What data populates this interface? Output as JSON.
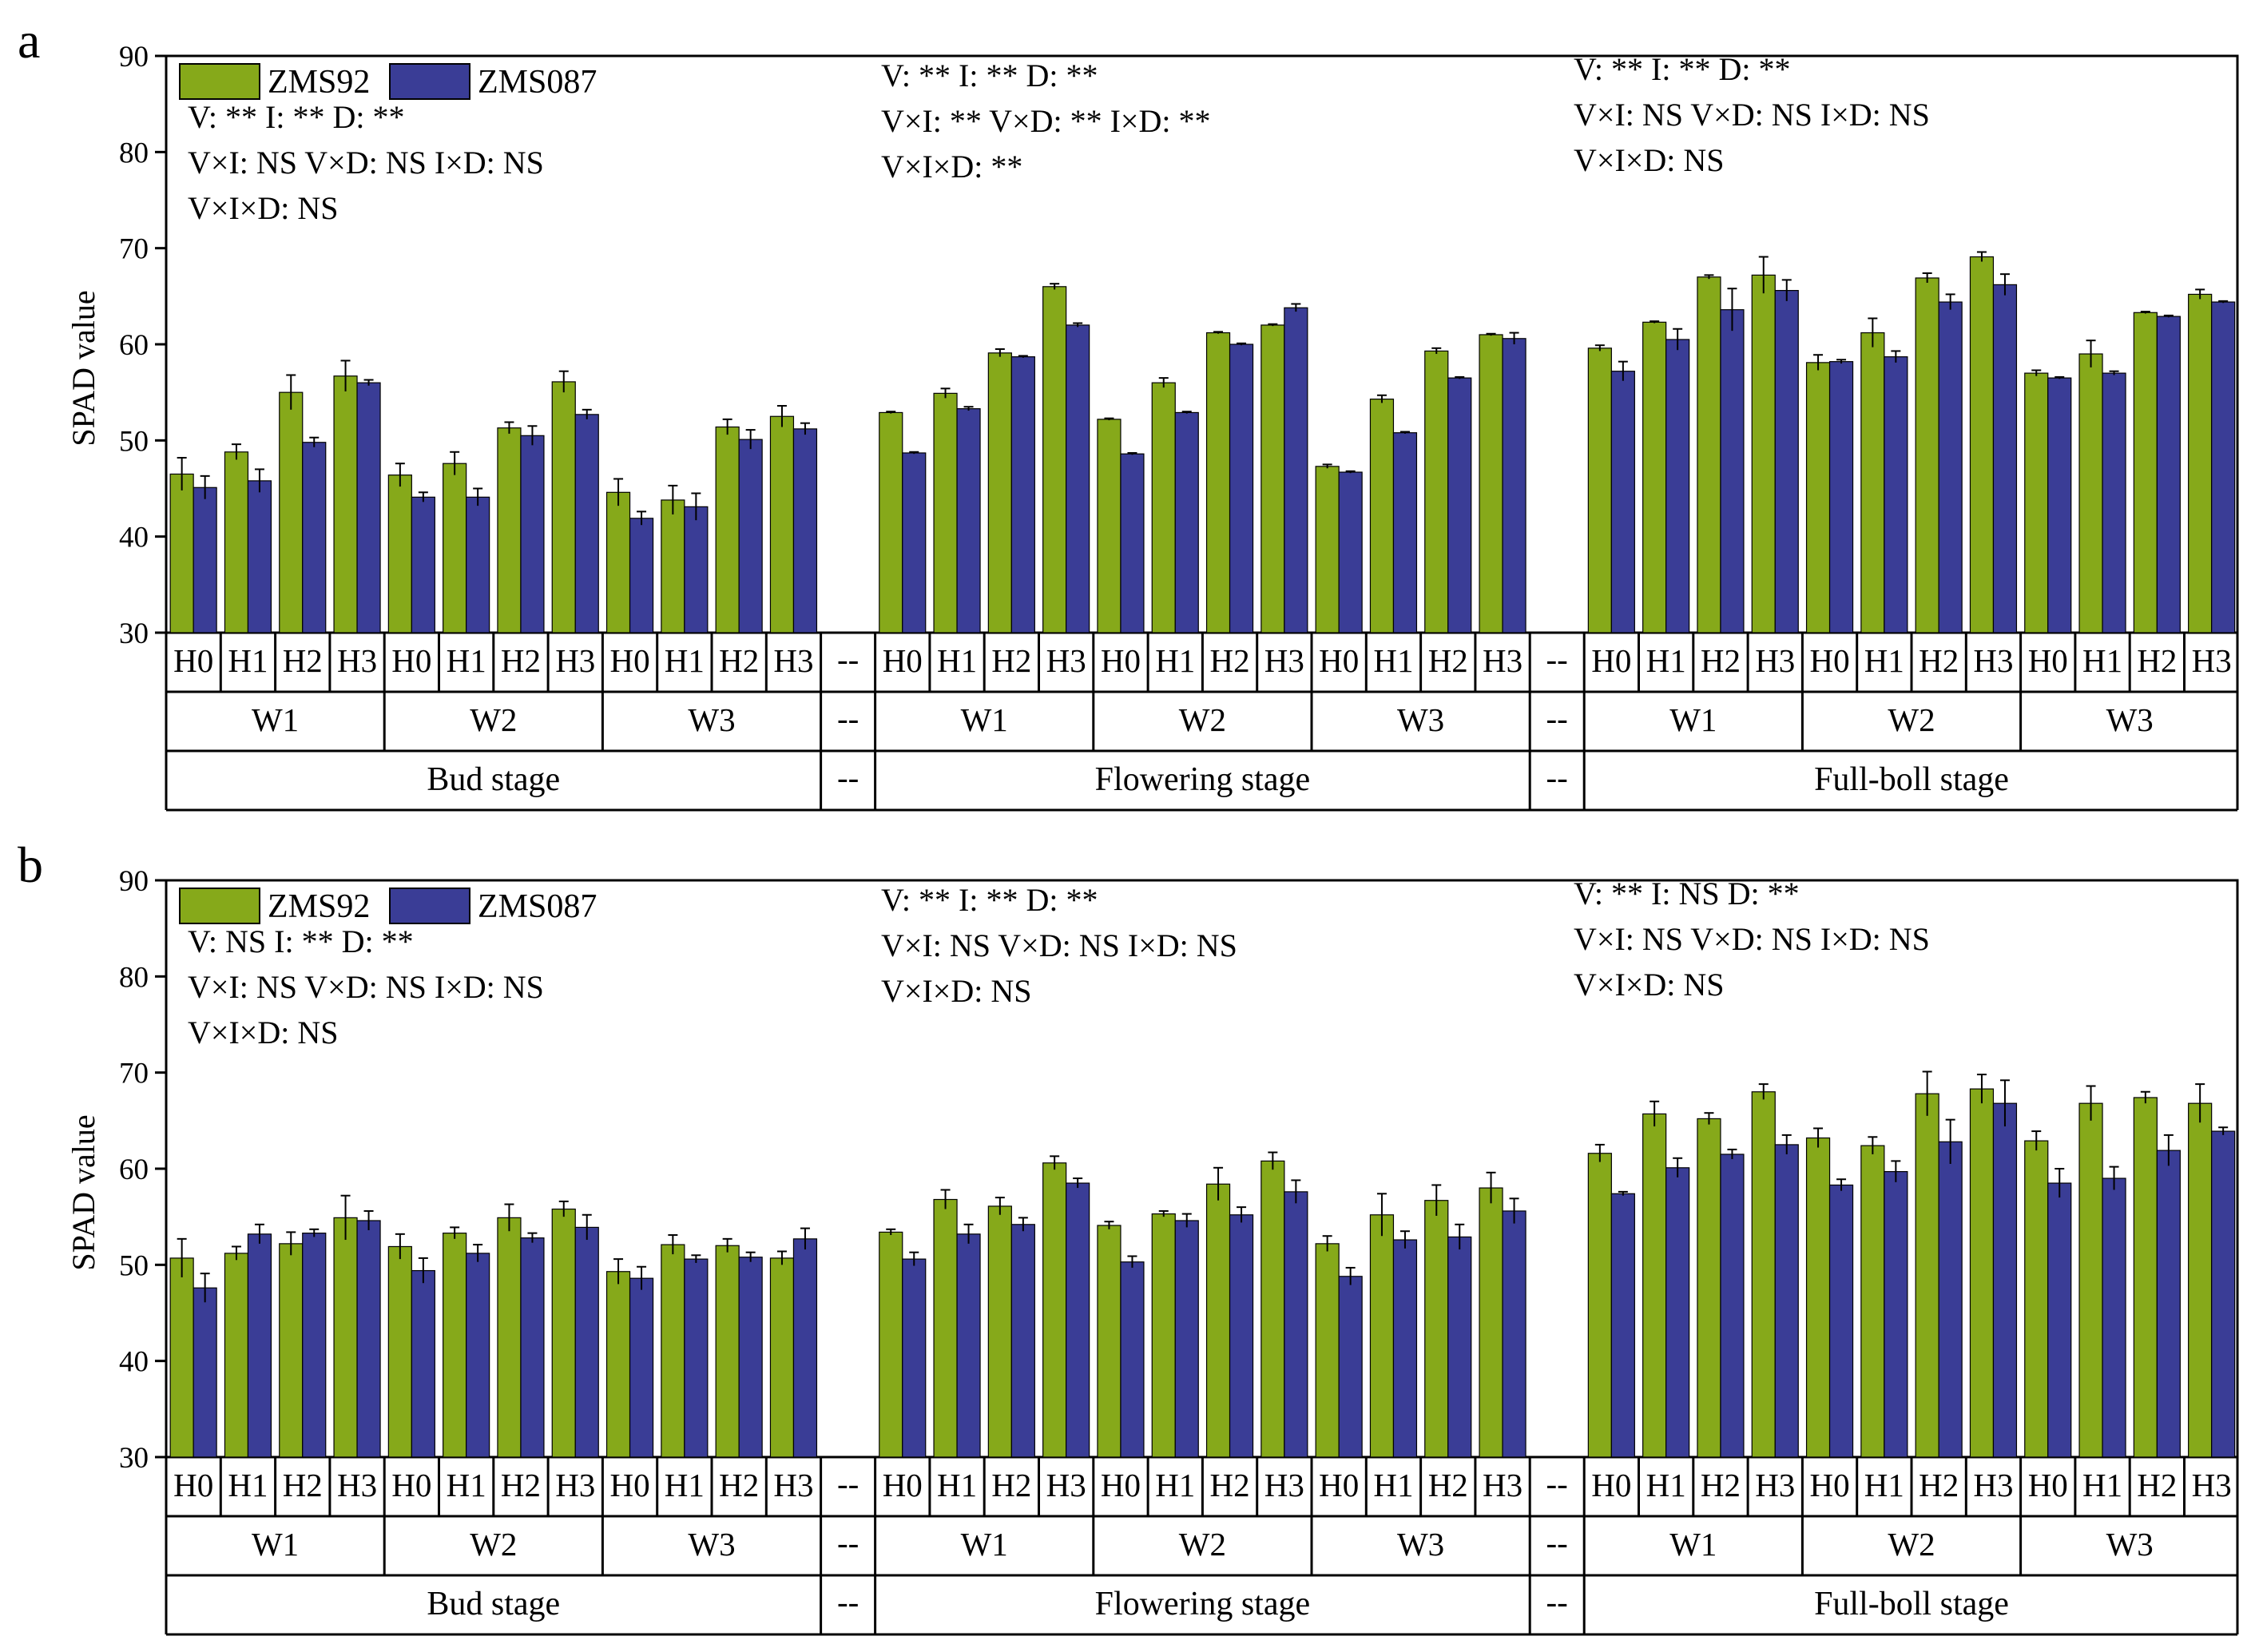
{
  "colors": {
    "ZMS92": "#86a91a",
    "ZMS087": "#3a3d96",
    "axis": "#000000"
  },
  "legend": [
    "ZMS92",
    "ZMS087"
  ],
  "placeholder": "--",
  "chart_data": [
    {
      "panel": "a",
      "type": "bar",
      "ylabel": "SPAD value",
      "ylim": [
        30,
        90
      ],
      "yticks": [
        30,
        40,
        50,
        60,
        70,
        80,
        90
      ],
      "series_names": [
        "ZMS92",
        "ZMS087"
      ],
      "stages": [
        {
          "name": "Bud stage",
          "stats": [
            "V: **   I: **   D: **",
            "V×I: NS  V×D: NS  I×D:  NS",
            "V×I×D: NS"
          ],
          "groups": [
            {
              "name": "W1",
              "treatments": [
                "H0",
                "H1",
                "H2",
                "H3"
              ],
              "ZMS92": [
                46.5,
                48.8,
                55.0,
                56.7
              ],
              "ZMS92_err": [
                1.7,
                0.8,
                1.8,
                1.6
              ],
              "ZMS087": [
                45.1,
                45.8,
                49.8,
                56.0
              ],
              "ZMS087_err": [
                1.2,
                1.2,
                0.5,
                0.3
              ]
            },
            {
              "name": "W2",
              "treatments": [
                "H0",
                "H1",
                "H2",
                "H3"
              ],
              "ZMS92": [
                46.4,
                47.6,
                51.3,
                56.1
              ],
              "ZMS92_err": [
                1.2,
                1.2,
                0.6,
                1.1
              ],
              "ZMS087": [
                44.1,
                44.1,
                50.5,
                52.7
              ],
              "ZMS087_err": [
                0.5,
                0.9,
                1.0,
                0.5
              ]
            },
            {
              "name": "W3",
              "treatments": [
                "H0",
                "H1",
                "H2",
                "H3"
              ],
              "ZMS92": [
                44.6,
                43.8,
                51.4,
                52.5
              ],
              "ZMS92_err": [
                1.4,
                1.5,
                0.8,
                1.1
              ],
              "ZMS087": [
                41.9,
                43.1,
                50.1,
                51.2
              ],
              "ZMS087_err": [
                0.7,
                1.4,
                1.0,
                0.6
              ]
            }
          ]
        },
        {
          "name": "Flowering stage",
          "stats": [
            "V: **    I: **   D: **",
            "V×I: **   V×D: **   I×D: **",
            "V×I×D: **"
          ],
          "groups": [
            {
              "name": "W1",
              "treatments": [
                "H0",
                "H1",
                "H2",
                "H3"
              ],
              "ZMS92": [
                52.9,
                54.9,
                59.1,
                66.0
              ],
              "ZMS92_err": [
                0.1,
                0.5,
                0.4,
                0.3
              ],
              "ZMS087": [
                48.7,
                53.3,
                58.7,
                62.0
              ],
              "ZMS087_err": [
                0.1,
                0.2,
                0.1,
                0.2
              ]
            },
            {
              "name": "W2",
              "treatments": [
                "H0",
                "H1",
                "H2",
                "H3"
              ],
              "ZMS92": [
                52.2,
                56.0,
                61.2,
                62.0
              ],
              "ZMS92_err": [
                0.1,
                0.5,
                0.1,
                0.1
              ],
              "ZMS087": [
                48.6,
                52.9,
                60.0,
                63.8
              ],
              "ZMS087_err": [
                0.1,
                0.1,
                0.1,
                0.4
              ]
            },
            {
              "name": "W3",
              "treatments": [
                "H0",
                "H1",
                "H2",
                "H3"
              ],
              "ZMS92": [
                47.3,
                54.3,
                59.3,
                61.0
              ],
              "ZMS92_err": [
                0.2,
                0.4,
                0.3,
                0.1
              ],
              "ZMS087": [
                46.7,
                50.8,
                56.5,
                60.6
              ],
              "ZMS087_err": [
                0.1,
                0.1,
                0.1,
                0.6
              ]
            }
          ]
        },
        {
          "name": "Full-boll stage",
          "stats": [
            "V: **    I: **   D: **",
            "V×I: NS   V×D: NS   I×D:  NS",
            "V×I×D: NS"
          ],
          "groups": [
            {
              "name": "W1",
              "treatments": [
                "H0",
                "H1",
                "H2",
                "H3"
              ],
              "ZMS92": [
                59.6,
                62.3,
                67.0,
                67.2
              ],
              "ZMS92_err": [
                0.3,
                0.1,
                0.2,
                1.9
              ],
              "ZMS087": [
                57.2,
                60.5,
                63.6,
                65.6
              ],
              "ZMS087_err": [
                1.0,
                1.1,
                2.2,
                1.1
              ]
            },
            {
              "name": "W2",
              "treatments": [
                "H0",
                "H1",
                "H2",
                "H3"
              ],
              "ZMS92": [
                58.1,
                61.2,
                66.9,
                69.1
              ],
              "ZMS92_err": [
                0.8,
                1.5,
                0.5,
                0.5
              ],
              "ZMS087": [
                58.2,
                58.7,
                64.4,
                66.2
              ],
              "ZMS087_err": [
                0.2,
                0.6,
                0.8,
                1.1
              ]
            },
            {
              "name": "W3",
              "treatments": [
                "H0",
                "H1",
                "H2",
                "H3"
              ],
              "ZMS92": [
                57.0,
                59.0,
                63.3,
                65.2
              ],
              "ZMS92_err": [
                0.3,
                1.4,
                0.1,
                0.5
              ],
              "ZMS087": [
                56.5,
                57.0,
                62.9,
                64.4
              ],
              "ZMS087_err": [
                0.1,
                0.2,
                0.1,
                0.1
              ]
            }
          ]
        }
      ]
    },
    {
      "panel": "b",
      "type": "bar",
      "ylabel": "SPAD value",
      "ylim": [
        30,
        90
      ],
      "yticks": [
        30,
        40,
        50,
        60,
        70,
        80,
        90
      ],
      "series_names": [
        "ZMS92",
        "ZMS087"
      ],
      "stages": [
        {
          "name": "Bud stage",
          "stats": [
            "V: NS   I: **   D: **",
            "V×I: NS  V×D: NS  I×D:  NS",
            "V×I×D: NS"
          ],
          "groups": [
            {
              "name": "W1",
              "treatments": [
                "H0",
                "H1",
                "H2",
                "H3"
              ],
              "ZMS92": [
                50.7,
                51.2,
                52.2,
                54.9
              ],
              "ZMS92_err": [
                2.0,
                0.7,
                1.2,
                2.3
              ],
              "ZMS087": [
                47.6,
                53.2,
                53.3,
                54.6
              ],
              "ZMS087_err": [
                1.5,
                1.0,
                0.4,
                1.0
              ]
            },
            {
              "name": "W2",
              "treatments": [
                "H0",
                "H1",
                "H2",
                "H3"
              ],
              "ZMS92": [
                51.9,
                53.3,
                54.9,
                55.8
              ],
              "ZMS92_err": [
                1.3,
                0.6,
                1.4,
                0.8
              ],
              "ZMS087": [
                49.4,
                51.2,
                52.8,
                53.9
              ],
              "ZMS087_err": [
                1.3,
                0.9,
                0.5,
                1.3
              ]
            },
            {
              "name": "W3",
              "treatments": [
                "H0",
                "H1",
                "H2",
                "H3"
              ],
              "ZMS92": [
                49.3,
                52.1,
                52.0,
                50.7
              ],
              "ZMS92_err": [
                1.3,
                1.0,
                0.7,
                0.7
              ],
              "ZMS087": [
                48.6,
                50.6,
                50.8,
                52.7
              ],
              "ZMS087_err": [
                1.2,
                0.4,
                0.5,
                1.1
              ]
            }
          ]
        },
        {
          "name": "Flowering stage",
          "stats": [
            "V: **    I: **   D: **",
            "V×I: NS  V×D: NS  I×D:  NS",
            "V×I×D: NS"
          ],
          "groups": [
            {
              "name": "W1",
              "treatments": [
                "H0",
                "H1",
                "H2",
                "H3"
              ],
              "ZMS92": [
                53.4,
                56.8,
                56.1,
                60.6
              ],
              "ZMS92_err": [
                0.3,
                1.0,
                0.9,
                0.7
              ],
              "ZMS087": [
                50.6,
                53.2,
                54.2,
                58.5
              ],
              "ZMS087_err": [
                0.7,
                1.0,
                0.7,
                0.5
              ]
            },
            {
              "name": "W2",
              "treatments": [
                "H0",
                "H1",
                "H2",
                "H3"
              ],
              "ZMS92": [
                54.1,
                55.3,
                58.4,
                60.8
              ],
              "ZMS92_err": [
                0.4,
                0.3,
                1.7,
                0.9
              ],
              "ZMS087": [
                50.3,
                54.6,
                55.2,
                57.6
              ],
              "ZMS087_err": [
                0.6,
                0.7,
                0.8,
                1.2
              ]
            },
            {
              "name": "W3",
              "treatments": [
                "H0",
                "H1",
                "H2",
                "H3"
              ],
              "ZMS92": [
                52.2,
                55.2,
                56.7,
                58.0
              ],
              "ZMS92_err": [
                0.8,
                2.2,
                1.6,
                1.6
              ],
              "ZMS087": [
                48.8,
                52.6,
                52.9,
                55.6
              ],
              "ZMS087_err": [
                0.9,
                0.9,
                1.3,
                1.3
              ]
            }
          ]
        },
        {
          "name": "Full-boll stage",
          "stats": [
            "V: **    I: NS  D: **",
            "V×I: NS   V×D: NS   I×D:  NS",
            "V×I×D: NS"
          ],
          "groups": [
            {
              "name": "W1",
              "treatments": [
                "H0",
                "H1",
                "H2",
                "H3"
              ],
              "ZMS92": [
                61.6,
                65.7,
                65.2,
                68.0
              ],
              "ZMS92_err": [
                0.9,
                1.3,
                0.6,
                0.8
              ],
              "ZMS087": [
                57.4,
                60.1,
                61.5,
                62.5
              ],
              "ZMS087_err": [
                0.2,
                1.0,
                0.5,
                1.0
              ]
            },
            {
              "name": "W2",
              "treatments": [
                "H0",
                "H1",
                "H2",
                "H3"
              ],
              "ZMS92": [
                63.2,
                62.4,
                67.8,
                68.3
              ],
              "ZMS92_err": [
                1.0,
                0.9,
                2.3,
                1.5
              ],
              "ZMS087": [
                58.3,
                59.7,
                62.8,
                66.8
              ],
              "ZMS087_err": [
                0.6,
                1.1,
                2.3,
                2.4
              ]
            },
            {
              "name": "W3",
              "treatments": [
                "H0",
                "H1",
                "H2",
                "H3"
              ],
              "ZMS92": [
                62.9,
                66.8,
                67.4,
                66.8
              ],
              "ZMS92_err": [
                1.0,
                1.8,
                0.6,
                2.0
              ],
              "ZMS087": [
                58.5,
                59.0,
                61.9,
                63.9
              ],
              "ZMS087_err": [
                1.5,
                1.2,
                1.6,
                0.4
              ]
            }
          ]
        }
      ]
    }
  ]
}
